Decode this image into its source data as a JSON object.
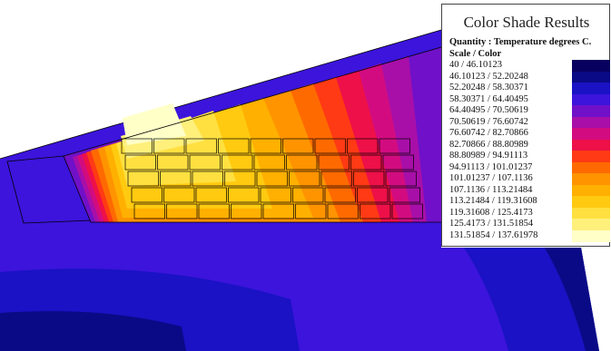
{
  "legend": {
    "title": "Color Shade Results",
    "quantity": "Quantity : Temperature degrees C.",
    "scale_label": "Scale / Color",
    "rows": [
      {
        "range": "40  /  46.10123",
        "color": "#08005e"
      },
      {
        "range": "46.10123  /  52.20248",
        "color": "#0a0a86"
      },
      {
        "range": "52.20248  /  58.30371",
        "color": "#1a12c4"
      },
      {
        "range": "58.30371  /  64.40495",
        "color": "#3c14dc"
      },
      {
        "range": "64.40495  /  70.50619",
        "color": "#7010c8"
      },
      {
        "range": "70.50619  /  76.60742",
        "color": "#a80fa8"
      },
      {
        "range": "76.60742  /  82.70866",
        "color": "#d20c80"
      },
      {
        "range": "82.70866  /  88.80989",
        "color": "#ee1048"
      },
      {
        "range": "88.80989  /  94.91113",
        "color": "#ff3a14"
      },
      {
        "range": "94.91113  /  101.01237",
        "color": "#ff6a00"
      },
      {
        "range": "101.01237  /  107.1136",
        "color": "#ff9400"
      },
      {
        "range": "107.1136  /  113.21484",
        "color": "#ffb000"
      },
      {
        "range": "113.21484  /  119.31608",
        "color": "#ffca10"
      },
      {
        "range": "119.31608  /  125.4173",
        "color": "#ffe040"
      },
      {
        "range": "125.4173  /  131.51854",
        "color": "#fff07c"
      },
      {
        "range": "131.51854  /  137.61978",
        "color": "#ffffc8"
      }
    ]
  },
  "colors": {
    "background": "#ffffff",
    "outline": "#000000",
    "ambient_dark": "#08005e",
    "ambient_mid": "#1a12c4",
    "ambient_light": "#3c14dc"
  }
}
